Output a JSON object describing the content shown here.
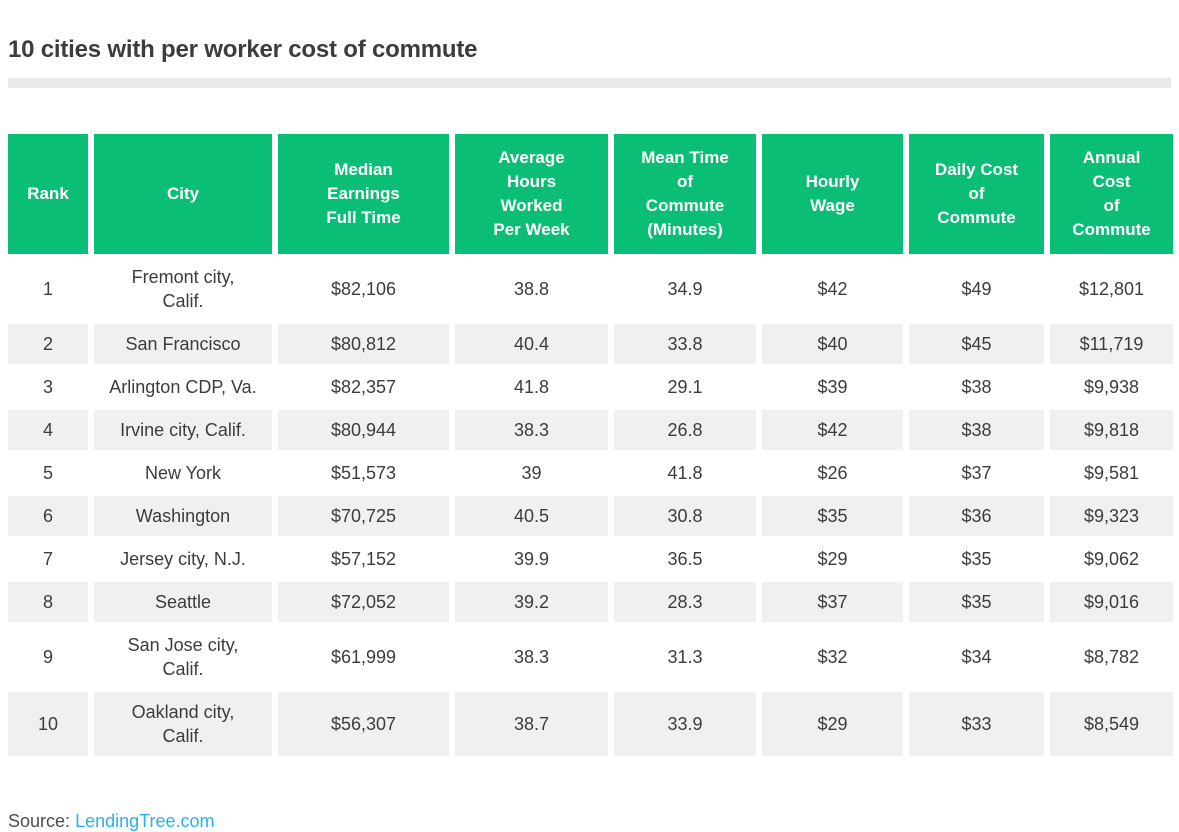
{
  "header": {
    "title": "10 cities with per worker cost of commute"
  },
  "colors": {
    "accent_green": "#0bbe76",
    "stripe_gray": "#f0f0f1",
    "divider_gray": "#e9e9e9",
    "text_dark": "#3c3c3c",
    "source_gray": "#4c4d52",
    "link_blue": "#27b1ee"
  },
  "table": {
    "headers": [
      "Rank",
      "City",
      "Median\nEarnings\nFull Time",
      "Average\nHours\nWorked\nPer Week",
      "Mean Time\nof\nCommute\n(Minutes)",
      "Hourly\nWage",
      "Daily Cost\nof\nCommute",
      "Annual\nCost\nof\nCommute"
    ],
    "column_keys": [
      "rank",
      "city",
      "median-earnings",
      "avg-hours-worked",
      "mean-commute-time",
      "hourly-wage",
      "daily-cost",
      "annual-cost"
    ],
    "rows": [
      [
        "1",
        "Fremont city,\nCalif.",
        "$82,106",
        "38.8",
        "34.9",
        "$42",
        "$49",
        "$12,801"
      ],
      [
        "2",
        "San Francisco",
        "$80,812",
        "40.4",
        "33.8",
        "$40",
        "$45",
        "$11,719"
      ],
      [
        "3",
        "Arlington CDP, Va.",
        "$82,357",
        "41.8",
        "29.1",
        "$39",
        "$38",
        "$9,938"
      ],
      [
        "4",
        "Irvine city, Calif.",
        "$80,944",
        "38.3",
        "26.8",
        "$42",
        "$38",
        "$9,818"
      ],
      [
        "5",
        "New York",
        "$51,573",
        "39",
        "41.8",
        "$26",
        "$37",
        "$9,581"
      ],
      [
        "6",
        "Washington",
        "$70,725",
        "40.5",
        "30.8",
        "$35",
        "$36",
        "$9,323"
      ],
      [
        "7",
        "Jersey city, N.J.",
        "$57,152",
        "39.9",
        "36.5",
        "$29",
        "$35",
        "$9,062"
      ],
      [
        "8",
        "Seattle",
        "$72,052",
        "39.2",
        "28.3",
        "$37",
        "$35",
        "$9,016"
      ],
      [
        "9",
        "San Jose city,\nCalif.",
        "$61,999",
        "38.3",
        "31.3",
        "$32",
        "$34",
        "$8,782"
      ],
      [
        "10",
        "Oakland city,\nCalif.",
        "$56,307",
        "38.7",
        "33.9",
        "$29",
        "$33",
        "$8,549"
      ]
    ]
  },
  "footer": {
    "source_label": "Source:",
    "source_link_text": "LendingTree.com"
  },
  "chart_data": {
    "type": "table",
    "title": "10 cities with per worker cost of commute",
    "columns": [
      "Rank",
      "City",
      "Median Earnings Full Time",
      "Average Hours Worked Per Week",
      "Mean Time of Commute (Minutes)",
      "Hourly Wage",
      "Daily Cost of Commute",
      "Annual Cost of Commute"
    ],
    "rows": [
      [
        1,
        "Fremont city, Calif.",
        82106,
        38.8,
        34.9,
        42,
        49,
        12801
      ],
      [
        2,
        "San Francisco",
        80812,
        40.4,
        33.8,
        40,
        45,
        11719
      ],
      [
        3,
        "Arlington CDP, Va.",
        82357,
        41.8,
        29.1,
        39,
        38,
        9938
      ],
      [
        4,
        "Irvine city, Calif.",
        80944,
        38.3,
        26.8,
        42,
        38,
        9818
      ],
      [
        5,
        "New York",
        51573,
        39,
        41.8,
        26,
        37,
        9581
      ],
      [
        6,
        "Washington",
        70725,
        40.5,
        30.8,
        35,
        36,
        9323
      ],
      [
        7,
        "Jersey city, N.J.",
        57152,
        39.9,
        36.5,
        29,
        35,
        9062
      ],
      [
        8,
        "Seattle",
        72052,
        39.2,
        28.3,
        37,
        35,
        9016
      ],
      [
        9,
        "San Jose city, Calif.",
        61999,
        38.3,
        31.3,
        32,
        34,
        8782
      ],
      [
        10,
        "Oakland city, Calif.",
        56307,
        38.7,
        33.9,
        29,
        33,
        8549
      ]
    ],
    "source": "LendingTree.com",
    "header_bg": "#0bbe76",
    "stripe_bg": "#f0f0f1"
  }
}
